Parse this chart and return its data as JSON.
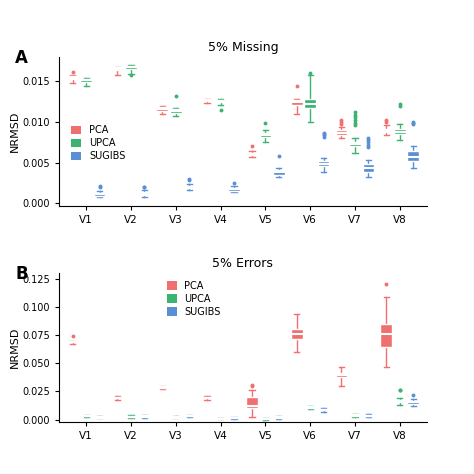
{
  "title_a": "5% Missing",
  "title_b": "5% Errors",
  "ylabel": "NRMSD",
  "categories": [
    "V1",
    "V2",
    "V3",
    "V4",
    "V5",
    "V6",
    "V7",
    "V8"
  ],
  "colors": {
    "PCA": "#F07070",
    "UPCA": "#3CB371",
    "SUGIBS": "#5B8FD4"
  },
  "panel_a": {
    "PCA": {
      "V1": {
        "q1": 0.01525,
        "med": 0.01545,
        "q3": 0.01565,
        "whislo": 0.0148,
        "whishi": 0.0158,
        "fliers": [
          0.0162
        ]
      },
      "V2": {
        "q1": 0.01635,
        "med": 0.01655,
        "q3": 0.0167,
        "whislo": 0.0158,
        "whishi": 0.0168,
        "fliers": []
      },
      "V3": {
        "q1": 0.01135,
        "med": 0.01155,
        "q3": 0.0118,
        "whislo": 0.011,
        "whishi": 0.012,
        "fliers": []
      },
      "V4": {
        "q1": 0.01255,
        "med": 0.01265,
        "q3": 0.01275,
        "whislo": 0.0123,
        "whishi": 0.01285,
        "fliers": []
      },
      "V5": {
        "q1": 0.0059,
        "med": 0.0061,
        "q3": 0.00625,
        "whislo": 0.0057,
        "whishi": 0.0064,
        "fliers": [
          0.007
        ]
      },
      "V6": {
        "q1": 0.01215,
        "med": 0.0124,
        "q3": 0.01265,
        "whislo": 0.011,
        "whishi": 0.01285,
        "fliers": [
          0.0144
        ]
      },
      "V7": {
        "q1": 0.00845,
        "med": 0.0087,
        "q3": 0.009,
        "whislo": 0.008,
        "whishi": 0.0094,
        "fliers": [
          0.0098,
          0.01,
          0.0102
        ]
      },
      "V8": {
        "q1": 0.00875,
        "med": 0.00895,
        "q3": 0.0092,
        "whislo": 0.0084,
        "whishi": 0.0096,
        "fliers": [
          0.01005,
          0.0102
        ]
      }
    },
    "UPCA": {
      "V1": {
        "q1": 0.0149,
        "med": 0.0151,
        "q3": 0.01525,
        "whislo": 0.0144,
        "whishi": 0.0154,
        "fliers": []
      },
      "V2": {
        "q1": 0.0165,
        "med": 0.0167,
        "q3": 0.01685,
        "whislo": 0.0159,
        "whishi": 0.017,
        "fliers": [
          0.0158
        ]
      },
      "V3": {
        "q1": 0.0111,
        "med": 0.0113,
        "q3": 0.01155,
        "whislo": 0.0107,
        "whishi": 0.01175,
        "fliers": [
          0.0132
        ]
      },
      "V4": {
        "q1": 0.01245,
        "med": 0.0126,
        "q3": 0.01275,
        "whislo": 0.01215,
        "whishi": 0.01285,
        "fliers": [
          0.0115
        ]
      },
      "V5": {
        "q1": 0.0082,
        "med": 0.00845,
        "q3": 0.0087,
        "whislo": 0.0076,
        "whishi": 0.009,
        "fliers": [
          0.0099
        ]
      },
      "V6": {
        "q1": 0.01175,
        "med": 0.01225,
        "q3": 0.0128,
        "whislo": 0.01,
        "whishi": 0.0158,
        "fliers": [
          0.016
        ]
      },
      "V7": {
        "q1": 0.007,
        "med": 0.0073,
        "q3": 0.0076,
        "whislo": 0.0062,
        "whishi": 0.008,
        "fliers": [
          0.0112,
          0.0108,
          0.0106,
          0.0102,
          0.0099,
          0.0096
        ]
      },
      "V8": {
        "q1": 0.00855,
        "med": 0.0088,
        "q3": 0.0092,
        "whislo": 0.0078,
        "whishi": 0.0097,
        "fliers": [
          0.0122,
          0.012
        ]
      }
    },
    "SUGIBS": {
      "V1": {
        "q1": 0.0009,
        "med": 0.0011,
        "q3": 0.0013,
        "whislo": 0.00075,
        "whishi": 0.00155,
        "fliers": [
          0.002,
          0.0021
        ]
      },
      "V2": {
        "q1": 0.001,
        "med": 0.0012,
        "q3": 0.0014,
        "whislo": 0.0008,
        "whishi": 0.0016,
        "fliers": [
          0.002,
          0.00205
        ]
      },
      "V3": {
        "q1": 0.00185,
        "med": 0.00205,
        "q3": 0.0022,
        "whislo": 0.0017,
        "whishi": 0.0024,
        "fliers": [
          0.0029,
          0.00295
        ]
      },
      "V4": {
        "q1": 0.00155,
        "med": 0.00175,
        "q3": 0.00195,
        "whislo": 0.0014,
        "whishi": 0.0021,
        "fliers": [
          0.0025
        ]
      },
      "V5": {
        "q1": 0.00355,
        "med": 0.00385,
        "q3": 0.0041,
        "whislo": 0.0032,
        "whishi": 0.0044,
        "fliers": [
          0.0058
        ]
      },
      "V6": {
        "q1": 0.0046,
        "med": 0.0049,
        "q3": 0.0052,
        "whislo": 0.0039,
        "whishi": 0.0056,
        "fliers": [
          0.0081,
          0.0084,
          0.00855,
          0.0086
        ]
      },
      "V7": {
        "q1": 0.0039,
        "med": 0.0043,
        "q3": 0.0048,
        "whislo": 0.0033,
        "whishi": 0.0053,
        "fliers": [
          0.0069,
          0.0072,
          0.0075,
          0.0078,
          0.008
        ]
      },
      "V8": {
        "q1": 0.00515,
        "med": 0.0057,
        "q3": 0.0064,
        "whislo": 0.0043,
        "whishi": 0.0071,
        "fliers": [
          0.0098,
          0.00985,
          0.01
        ]
      }
    }
  },
  "panel_b": {
    "PCA": {
      "V1": {
        "q1": 0.0685,
        "med": 0.0692,
        "q3": 0.0696,
        "whislo": 0.067,
        "whishi": 0.07,
        "fliers": [
          0.074
        ]
      },
      "V2": {
        "q1": 0.0187,
        "med": 0.0194,
        "q3": 0.0201,
        "whislo": 0.0173,
        "whishi": 0.0209,
        "fliers": []
      },
      "V3": {
        "q1": 0.0282,
        "med": 0.0289,
        "q3": 0.0295,
        "whislo": 0.0268,
        "whishi": 0.0302,
        "fliers": []
      },
      "V4": {
        "q1": 0.0187,
        "med": 0.0195,
        "q3": 0.0202,
        "whislo": 0.0171,
        "whishi": 0.021,
        "fliers": []
      },
      "V5": {
        "q1": 0.0105,
        "med": 0.012,
        "q3": 0.0198,
        "whislo": 0.002,
        "whishi": 0.0262,
        "fliers": [
          0.0298,
          0.0305
        ]
      },
      "V6": {
        "q1": 0.071,
        "med": 0.076,
        "q3": 0.0805,
        "whislo": 0.06,
        "whishi": 0.0935,
        "fliers": []
      },
      "V7": {
        "q1": 0.0375,
        "med": 0.0395,
        "q3": 0.041,
        "whislo": 0.03,
        "whishi": 0.047,
        "fliers": []
      },
      "V8": {
        "q1": 0.0645,
        "med": 0.0755,
        "q3": 0.085,
        "whislo": 0.047,
        "whishi": 0.109,
        "fliers": [
          0.12
        ]
      }
    },
    "UPCA": {
      "V1": {
        "q1": 0.0028,
        "med": 0.0033,
        "q3": 0.0038,
        "whislo": 0.0021,
        "whishi": 0.0044,
        "fliers": []
      },
      "V2": {
        "q1": 0.0021,
        "med": 0.0026,
        "q3": 0.0031,
        "whislo": 0.0014,
        "whishi": 0.0037,
        "fliers": []
      },
      "V3": {
        "q1": 0.00175,
        "med": 0.0022,
        "q3": 0.0026,
        "whislo": 0.0011,
        "whishi": 0.0031,
        "fliers": []
      },
      "V4": {
        "q1": 0.00055,
        "med": 0.0009,
        "q3": 0.0013,
        "whislo": 0.0001,
        "whishi": 0.00175,
        "fliers": []
      },
      "V5": {
        "q1": 0.0004,
        "med": 0.0008,
        "q3": 0.0012,
        "whislo": 5e-05,
        "whishi": 0.00165,
        "fliers": []
      },
      "V6": {
        "q1": 0.0102,
        "med": 0.0108,
        "q3": 0.0114,
        "whislo": 0.009,
        "whishi": 0.012,
        "fliers": []
      },
      "V7": {
        "q1": 0.0032,
        "med": 0.0038,
        "q3": 0.0043,
        "whislo": 0.0023,
        "whishi": 0.0049,
        "fliers": []
      },
      "V8": {
        "q1": 0.0152,
        "med": 0.0164,
        "q3": 0.0176,
        "whislo": 0.0133,
        "whishi": 0.019,
        "fliers": [
          0.0258,
          0.0262
        ]
      }
    },
    "SUGIBS": {
      "V1": {
        "q1": 0.00175,
        "med": 0.00215,
        "q3": 0.00255,
        "whislo": 0.00115,
        "whishi": 0.00295,
        "fliers": []
      },
      "V2": {
        "q1": 0.0025,
        "med": 0.003,
        "q3": 0.0035,
        "whislo": 0.00175,
        "whishi": 0.0041,
        "fliers": []
      },
      "V3": {
        "q1": 0.00275,
        "med": 0.0032,
        "q3": 0.00365,
        "whislo": 0.002,
        "whishi": 0.0042,
        "fliers": []
      },
      "V4": {
        "q1": 0.00145,
        "med": 0.00185,
        "q3": 0.00225,
        "whislo": 0.0008,
        "whishi": 0.0027,
        "fliers": []
      },
      "V5": {
        "q1": 0.00145,
        "med": 0.002,
        "q3": 0.00255,
        "whislo": 0.0007,
        "whishi": 0.00315,
        "fliers": []
      },
      "V6": {
        "q1": 0.0081,
        "med": 0.0088,
        "q3": 0.0096,
        "whislo": 0.007,
        "whishi": 0.0104,
        "fliers": []
      },
      "V7": {
        "q1": 0.0029,
        "med": 0.00345,
        "q3": 0.00395,
        "whislo": 0.0021,
        "whishi": 0.00455,
        "fliers": []
      },
      "V8": {
        "q1": 0.0141,
        "med": 0.01545,
        "q3": 0.0168,
        "whislo": 0.0122,
        "whishi": 0.0182,
        "fliers": [
          0.0215
        ]
      }
    }
  },
  "ylim_a": [
    -0.0003,
    0.018
  ],
  "ylim_b": [
    -0.002,
    0.13
  ],
  "yticks_a": [
    0.0,
    0.005,
    0.01,
    0.015
  ],
  "yticks_b": [
    0.0,
    0.025,
    0.05,
    0.075,
    0.1,
    0.125
  ],
  "bg_color": "#FFFFFF",
  "offsets": [
    -0.3,
    0.0,
    0.3
  ],
  "box_width": 0.26
}
